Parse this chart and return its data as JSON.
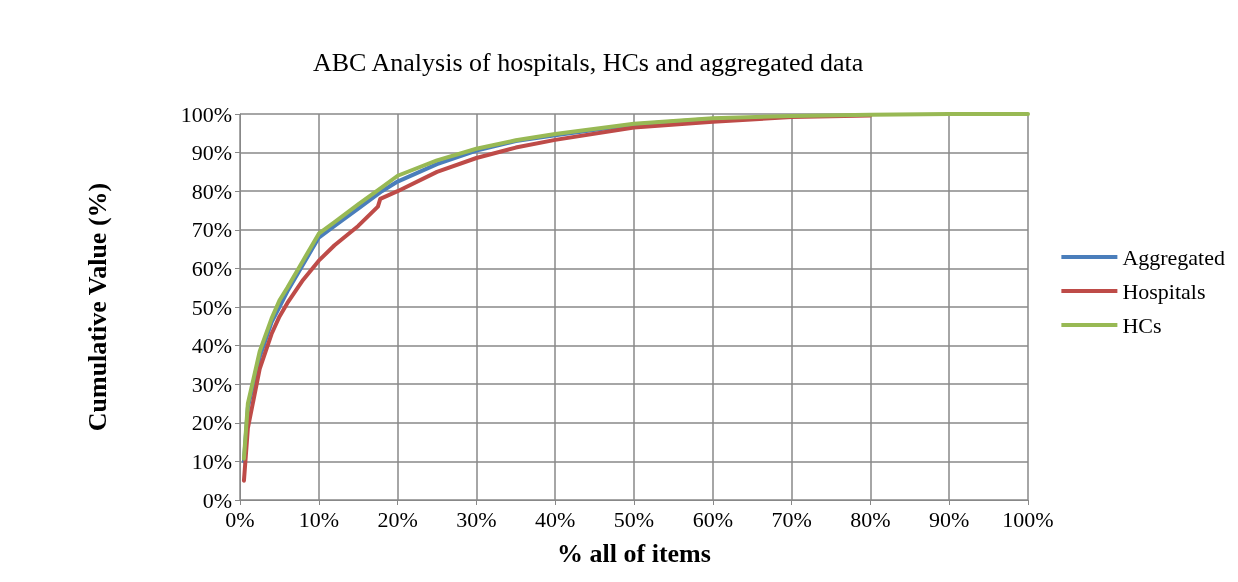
{
  "chart_data": {
    "type": "line",
    "title": "ABC Analysis of hospitals, HCs and aggregated data",
    "xlabel": "% all of items",
    "ylabel": "Cumulative Value (%)",
    "xlim": [
      0,
      100
    ],
    "ylim": [
      0,
      100
    ],
    "xticks": [
      {
        "value": 0,
        "label": "0%"
      },
      {
        "value": 10,
        "label": "10%"
      },
      {
        "value": 20,
        "label": "20%"
      },
      {
        "value": 30,
        "label": "30%"
      },
      {
        "value": 40,
        "label": "40%"
      },
      {
        "value": 50,
        "label": "50%"
      },
      {
        "value": 60,
        "label": "60%"
      },
      {
        "value": 70,
        "label": "70%"
      },
      {
        "value": 80,
        "label": "80%"
      },
      {
        "value": 90,
        "label": "90%"
      },
      {
        "value": 100,
        "label": "100%"
      }
    ],
    "yticks": [
      {
        "value": 0,
        "label": "0%"
      },
      {
        "value": 10,
        "label": "10%"
      },
      {
        "value": 20,
        "label": "20%"
      },
      {
        "value": 30,
        "label": "30%"
      },
      {
        "value": 40,
        "label": "40%"
      },
      {
        "value": 50,
        "label": "50%"
      },
      {
        "value": 60,
        "label": "60%"
      },
      {
        "value": 70,
        "label": "70%"
      },
      {
        "value": 80,
        "label": "80%"
      },
      {
        "value": 90,
        "label": "90%"
      },
      {
        "value": 100,
        "label": "100%"
      }
    ],
    "grid": true,
    "legend": "right",
    "marker": "none",
    "line_style": "solid",
    "series": [
      {
        "name": "Aggregated",
        "color": "#4a7ebb",
        "x": [
          0.5,
          1,
          2.5,
          4,
          5,
          6,
          8,
          10,
          12,
          15,
          18,
          20,
          25,
          30,
          35,
          40,
          50,
          60
        ],
        "values": [
          10,
          24,
          37,
          46,
          50,
          54,
          61,
          68,
          71,
          75.5,
          80,
          82.5,
          87,
          90.5,
          93,
          94.5,
          97.3,
          98.8
        ]
      },
      {
        "name": "Hospitals",
        "color": "#be4b48",
        "x": [
          0.5,
          1,
          2.5,
          4,
          5,
          6,
          8,
          10,
          12,
          15,
          17.5,
          17.8,
          20,
          25,
          30,
          35,
          40,
          50,
          60,
          70,
          80
        ],
        "values": [
          5,
          18.6,
          34,
          43,
          47.5,
          51,
          57,
          62,
          66,
          71,
          76,
          78,
          80,
          85,
          88.6,
          91.3,
          93.3,
          96.5,
          98,
          99.2,
          99.6
        ]
      },
      {
        "name": "HCs",
        "color": "#98b954",
        "x": [
          0.5,
          1,
          2.5,
          4,
          5,
          6,
          8,
          10,
          12,
          15,
          18,
          20,
          25,
          30,
          35,
          40,
          50,
          60,
          70,
          80,
          90,
          100
        ],
        "values": [
          10.7,
          25,
          38.5,
          47,
          51.7,
          55,
          62,
          69,
          72,
          76.6,
          81,
          84,
          88,
          91,
          93.2,
          94.8,
          97.5,
          98.9,
          99.5,
          99.8,
          100,
          100
        ]
      }
    ]
  }
}
